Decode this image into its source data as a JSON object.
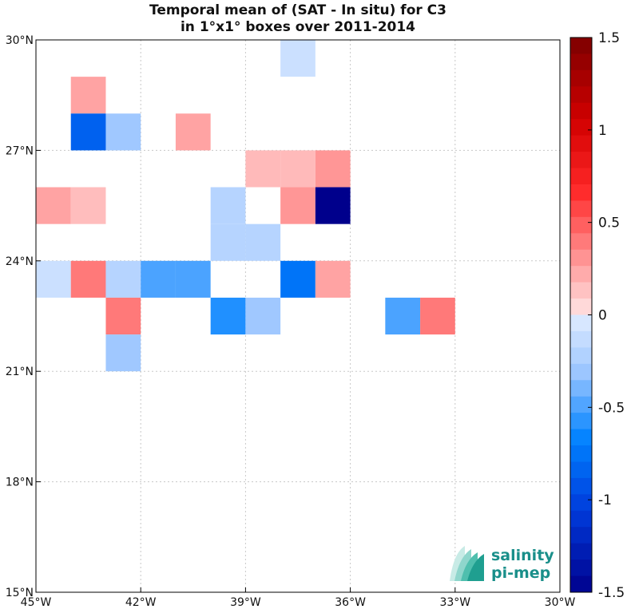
{
  "chart_data": {
    "type": "heatmap",
    "title_line1": "Temporal mean of (SAT - In situ) for C3",
    "title_line2": "in 1°x1° boxes over 2011-2014",
    "x_ticks": [
      {
        "value": -45,
        "label": "45°W"
      },
      {
        "value": -42,
        "label": "42°W"
      },
      {
        "value": -39,
        "label": "39°W"
      },
      {
        "value": -36,
        "label": "36°W"
      },
      {
        "value": -33,
        "label": "33°W"
      },
      {
        "value": -30,
        "label": "30°W"
      }
    ],
    "y_ticks": [
      {
        "value": 15,
        "label": "15°N"
      },
      {
        "value": 18,
        "label": "18°N"
      },
      {
        "value": 21,
        "label": "21°N"
      },
      {
        "value": 24,
        "label": "24°N"
      },
      {
        "value": 27,
        "label": "27°N"
      },
      {
        "value": 30,
        "label": "30°N"
      }
    ],
    "xlim": [
      -45,
      -30
    ],
    "ylim": [
      15,
      30
    ],
    "grid": true,
    "colorbar": {
      "vmin": -1.5,
      "vmax": 1.5,
      "levels": 34,
      "ticks": [
        {
          "value": 1.5,
          "label": "1.5"
        },
        {
          "value": 1,
          "label": "1"
        },
        {
          "value": 0.5,
          "label": "0.5"
        },
        {
          "value": 0,
          "label": "0"
        },
        {
          "value": -0.5,
          "label": "-0.5"
        },
        {
          "value": -1,
          "label": "-1"
        },
        {
          "value": -1.5,
          "label": "-1.5"
        }
      ]
    },
    "cells": [
      {
        "lon": -38,
        "lat": 29,
        "value": -0.1
      },
      {
        "lon": -44,
        "lat": 28,
        "value": 0.25
      },
      {
        "lon": -44,
        "lat": 27,
        "value": -0.85
      },
      {
        "lon": -43,
        "lat": 27,
        "value": -0.3
      },
      {
        "lon": -41,
        "lat": 27,
        "value": 0.25
      },
      {
        "lon": -39,
        "lat": 26,
        "value": 0.16
      },
      {
        "lon": -38,
        "lat": 26,
        "value": 0.16
      },
      {
        "lon": -37,
        "lat": 26,
        "value": 0.3
      },
      {
        "lon": -45,
        "lat": 25,
        "value": 0.25
      },
      {
        "lon": -44,
        "lat": 25,
        "value": 0.15
      },
      {
        "lon": -40,
        "lat": 25,
        "value": -0.2
      },
      {
        "lon": -38,
        "lat": 25,
        "value": 0.3
      },
      {
        "lon": -37,
        "lat": 25,
        "value": -1.5
      },
      {
        "lon": -40,
        "lat": 24,
        "value": -0.2
      },
      {
        "lon": -39,
        "lat": 24,
        "value": -0.2
      },
      {
        "lon": -45,
        "lat": 23,
        "value": -0.1
      },
      {
        "lon": -44,
        "lat": 23,
        "value": 0.4
      },
      {
        "lon": -43,
        "lat": 23,
        "value": -0.2
      },
      {
        "lon": -42,
        "lat": 23,
        "value": -0.5
      },
      {
        "lon": -41,
        "lat": 23,
        "value": -0.5
      },
      {
        "lon": -38,
        "lat": 23,
        "value": -0.75
      },
      {
        "lon": -37,
        "lat": 23,
        "value": 0.25
      },
      {
        "lon": -43,
        "lat": 22,
        "value": 0.4
      },
      {
        "lon": -40,
        "lat": 22,
        "value": -0.6
      },
      {
        "lon": -39,
        "lat": 22,
        "value": -0.3
      },
      {
        "lon": -35,
        "lat": 22,
        "value": -0.5
      },
      {
        "lon": -34,
        "lat": 22,
        "value": 0.4
      },
      {
        "lon": -43,
        "lat": 21,
        "value": -0.3
      }
    ]
  },
  "logo": {
    "line1": "salinity",
    "line2": "pi-mep"
  }
}
